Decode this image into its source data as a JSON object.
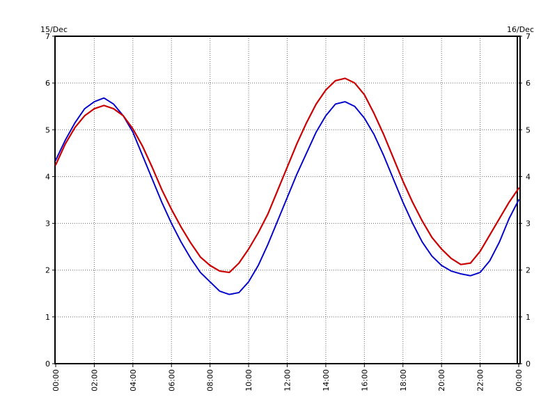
{
  "chart_data": {
    "type": "line",
    "title": "",
    "xlabel": "",
    "ylabel": "",
    "date_left": "15/Dec",
    "date_right": "16/Dec",
    "x_unit": "hour",
    "xlim": [
      0,
      24
    ],
    "ylim": [
      0,
      7
    ],
    "x_tick_labels": [
      "00:00",
      "02:00",
      "04:00",
      "06:00",
      "08:00",
      "10:00",
      "12:00",
      "14:00",
      "16:00",
      "18:00",
      "20:00",
      "22:00",
      "00:00"
    ],
    "y_tick_labels": [
      "0",
      "1",
      "2",
      "3",
      "4",
      "5",
      "6",
      "7"
    ],
    "grid": true,
    "grid_style": "dotted",
    "series": [
      {
        "color": "#0000cc",
        "style": "dotted",
        "points": [
          [
            0,
            4.35
          ],
          [
            0.5,
            4.78
          ],
          [
            1.0,
            5.15
          ],
          [
            1.5,
            5.45
          ],
          [
            2.0,
            5.6
          ],
          [
            2.5,
            5.68
          ],
          [
            3.0,
            5.55
          ],
          [
            3.5,
            5.3
          ],
          [
            4.0,
            4.95
          ],
          [
            4.5,
            4.45
          ],
          [
            5.0,
            3.95
          ],
          [
            5.5,
            3.45
          ],
          [
            6.0,
            3.0
          ],
          [
            6.5,
            2.6
          ],
          [
            7.0,
            2.25
          ],
          [
            7.5,
            1.95
          ],
          [
            8.0,
            1.75
          ],
          [
            8.5,
            1.55
          ],
          [
            9.0,
            1.48
          ],
          [
            9.5,
            1.52
          ],
          [
            10.0,
            1.75
          ],
          [
            10.5,
            2.1
          ],
          [
            11.0,
            2.55
          ],
          [
            11.5,
            3.05
          ],
          [
            12.0,
            3.55
          ],
          [
            12.5,
            4.05
          ],
          [
            13.0,
            4.5
          ],
          [
            13.5,
            4.95
          ],
          [
            14.0,
            5.3
          ],
          [
            14.5,
            5.55
          ],
          [
            15.0,
            5.6
          ],
          [
            15.5,
            5.5
          ],
          [
            16.0,
            5.25
          ],
          [
            16.5,
            4.9
          ],
          [
            17.0,
            4.45
          ],
          [
            17.5,
            3.95
          ],
          [
            18.0,
            3.45
          ],
          [
            18.5,
            3.0
          ],
          [
            19.0,
            2.6
          ],
          [
            19.5,
            2.3
          ],
          [
            20.0,
            2.1
          ],
          [
            20.5,
            1.98
          ],
          [
            21.0,
            1.92
          ],
          [
            21.5,
            1.88
          ],
          [
            22.0,
            1.95
          ],
          [
            22.5,
            2.2
          ],
          [
            23.0,
            2.6
          ],
          [
            23.5,
            3.1
          ],
          [
            24.0,
            3.5
          ]
        ]
      },
      {
        "color": "#cc0000",
        "style": "solid",
        "points": [
          [
            0,
            4.25
          ],
          [
            0.5,
            4.7
          ],
          [
            1.0,
            5.05
          ],
          [
            1.5,
            5.3
          ],
          [
            2.0,
            5.45
          ],
          [
            2.5,
            5.52
          ],
          [
            3.0,
            5.45
          ],
          [
            3.5,
            5.3
          ],
          [
            4.0,
            5.02
          ],
          [
            4.5,
            4.65
          ],
          [
            5.0,
            4.2
          ],
          [
            5.5,
            3.72
          ],
          [
            6.0,
            3.3
          ],
          [
            6.5,
            2.92
          ],
          [
            7.0,
            2.58
          ],
          [
            7.5,
            2.28
          ],
          [
            8.0,
            2.1
          ],
          [
            8.5,
            1.98
          ],
          [
            9.0,
            1.95
          ],
          [
            9.5,
            2.15
          ],
          [
            10.0,
            2.45
          ],
          [
            10.5,
            2.8
          ],
          [
            11.0,
            3.2
          ],
          [
            11.5,
            3.7
          ],
          [
            12.0,
            4.2
          ],
          [
            12.5,
            4.7
          ],
          [
            13.0,
            5.15
          ],
          [
            13.5,
            5.55
          ],
          [
            14.0,
            5.85
          ],
          [
            14.5,
            6.05
          ],
          [
            15.0,
            6.1
          ],
          [
            15.5,
            6.0
          ],
          [
            16.0,
            5.75
          ],
          [
            16.5,
            5.35
          ],
          [
            17.0,
            4.9
          ],
          [
            17.5,
            4.4
          ],
          [
            18.0,
            3.9
          ],
          [
            18.5,
            3.45
          ],
          [
            19.0,
            3.05
          ],
          [
            19.5,
            2.7
          ],
          [
            20.0,
            2.45
          ],
          [
            20.5,
            2.25
          ],
          [
            21.0,
            2.12
          ],
          [
            21.5,
            2.15
          ],
          [
            22.0,
            2.4
          ],
          [
            22.5,
            2.75
          ],
          [
            23.0,
            3.1
          ],
          [
            23.5,
            3.45
          ],
          [
            24.0,
            3.75
          ]
        ]
      }
    ]
  }
}
